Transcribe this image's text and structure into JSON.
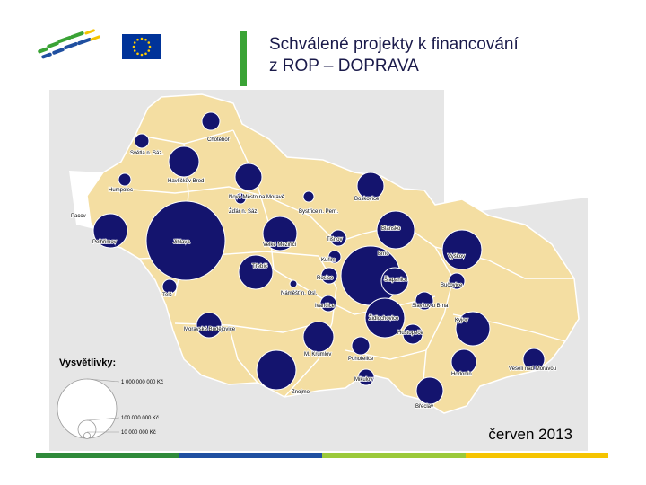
{
  "title": "Schválené projekty k financování\nz ROP – DOPRAVA",
  "date": "červen 2013",
  "colors": {
    "accent_green": "#3aa335",
    "region_fill": "#f4dea2",
    "circle_fill": "#14146e",
    "outside_fill": "#d9d9d9",
    "eu_blue": "#003399",
    "eu_star": "#ffcc00",
    "footer_colors": [
      "#2f8a3a",
      "#1f4fa0",
      "#9bc93a",
      "#f5c400"
    ]
  },
  "legend": {
    "title": "Vysvětlivky:",
    "items": [
      "1 000 000 000 Kč",
      "100 000 000 Kč",
      "10 000 000 Kč"
    ]
  },
  "places": [
    "Chotěboř",
    "Světlá n. Sáz.",
    "Havlíčkův Brod",
    "Nové Město na Moravě",
    "Humpolec",
    "Žďár n. Sáz.",
    "Bystřice n. Pern.",
    "Boskovice",
    "Pacov",
    "Pelhřimov",
    "Jihlava",
    "Velké Meziříčí",
    "Tišnov",
    "Blansko",
    "Brno",
    "Vyškov",
    "Kuřim",
    "Třebíč",
    "Rosice",
    "Šlapanice",
    "Bučovice",
    "Telč",
    "Náměšť n. Osl.",
    "Ivančice",
    "Slavkov u Brna",
    "Židlochovice",
    "Kyjov",
    "Moravské Budějovice",
    "Hustopeče",
    "M. Krumlov",
    "Pohořelice",
    "Hodonín",
    "Veselí nad Moravou",
    "Mikulov",
    "Znojmo",
    "Břeclav"
  ]
}
